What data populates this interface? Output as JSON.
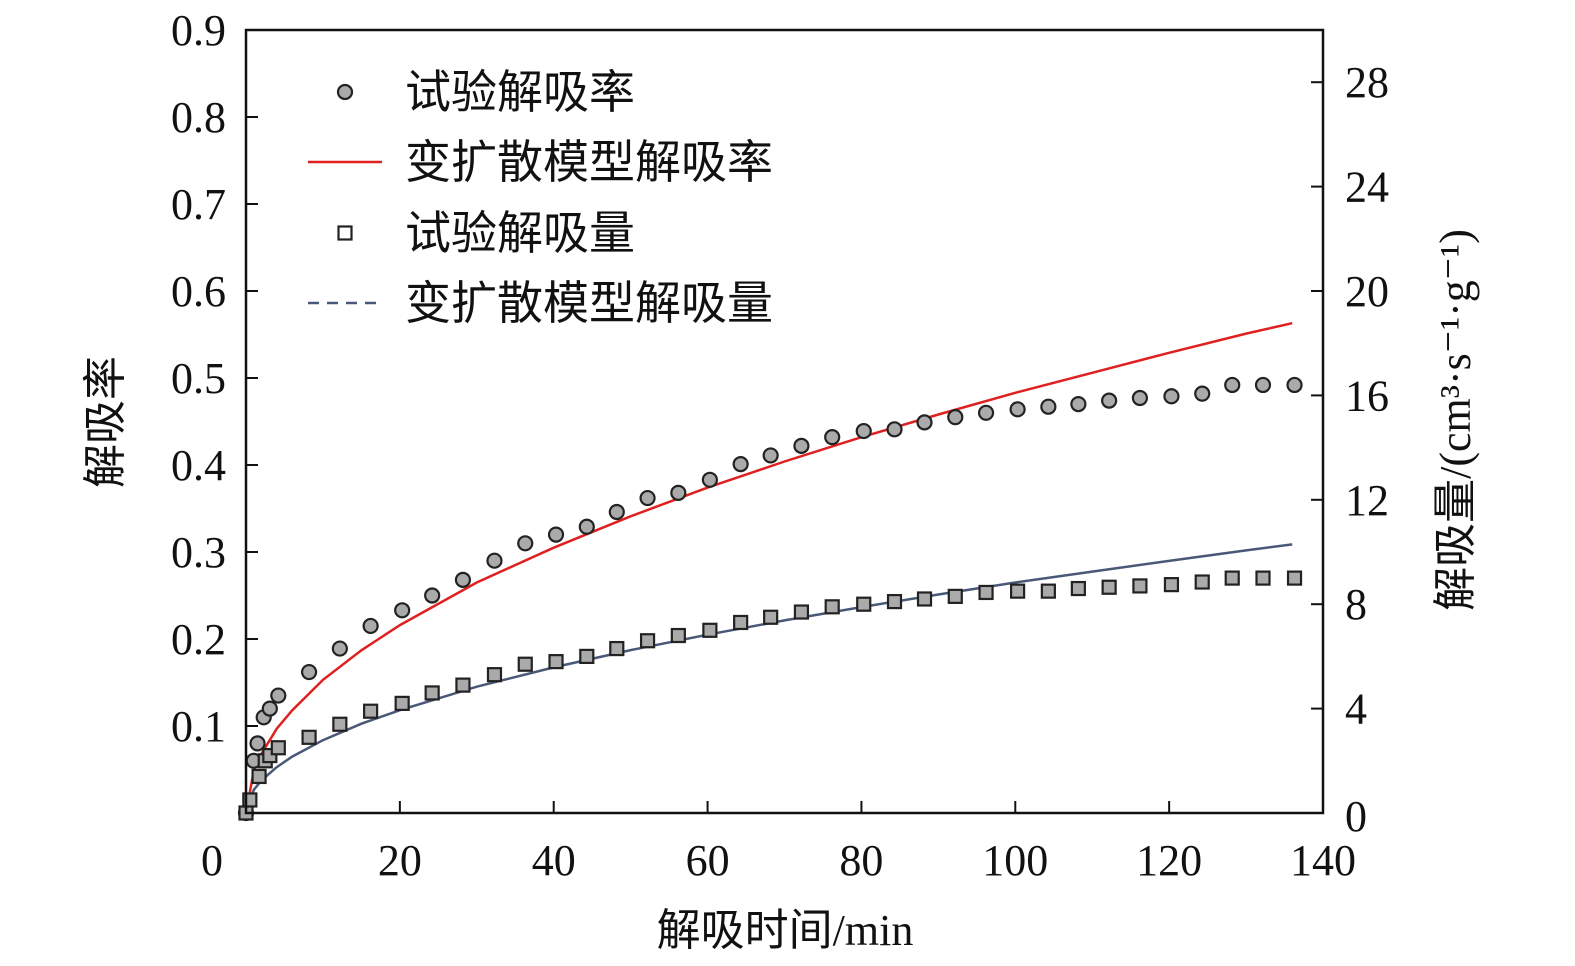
{
  "chart_data": {
    "type": "scatter",
    "xlabel": "解吸时间/min",
    "ylabel_left": "解吸率",
    "ylabel_right": "解吸量/(cm³·s⁻¹·g⁻¹)",
    "xlim": [
      0,
      140
    ],
    "ylim_left": [
      0,
      0.9
    ],
    "ylim_right": [
      0,
      30
    ],
    "x_ticks": [
      "0",
      "20",
      "40",
      "60",
      "80",
      "100",
      "120",
      "140"
    ],
    "x_tick_values": [
      0,
      20,
      40,
      60,
      80,
      100,
      120,
      140
    ],
    "y_left_ticks": [
      "0.1",
      "0.2",
      "0.3",
      "0.4",
      "0.5",
      "0.6",
      "0.7",
      "0.8",
      "0.9"
    ],
    "y_left_tick_values": [
      0.1,
      0.2,
      0.3,
      0.4,
      0.5,
      0.6,
      0.7,
      0.8,
      0.9
    ],
    "y_right_ticks": [
      "0",
      "4",
      "8",
      "12",
      "16",
      "20",
      "24",
      "28"
    ],
    "y_right_tick_values": [
      0,
      4,
      8,
      12,
      16,
      20,
      24,
      28
    ],
    "legend_placement": "top-left",
    "grid": false,
    "series": [
      {
        "name": "试验解吸率",
        "kind": "circle",
        "axis": "left",
        "color": "#aaaaaa",
        "x": [
          0,
          1,
          1.5,
          2.3,
          3.1,
          4.2,
          8.2,
          12.2,
          16.2,
          20.3,
          24.2,
          28.2,
          32.3,
          36.3,
          40.3,
          44.3,
          48.2,
          52.2,
          56.2,
          60.3,
          64.3,
          68.2,
          72.2,
          76.2,
          80.3,
          84.3,
          88.2,
          92.2,
          96.2,
          100.3,
          104.3,
          108.2,
          112.2,
          116.2,
          120.3,
          124.3,
          128.2,
          132.2,
          136.3
        ],
        "y": [
          0,
          0.06,
          0.08,
          0.11,
          0.12,
          0.135,
          0.162,
          0.189,
          0.215,
          0.233,
          0.25,
          0.268,
          0.29,
          0.31,
          0.32,
          0.329,
          0.346,
          0.362,
          0.368,
          0.383,
          0.401,
          0.411,
          0.422,
          0.432,
          0.439,
          0.441,
          0.449,
          0.455,
          0.46,
          0.464,
          0.467,
          0.47,
          0.474,
          0.477,
          0.479,
          0.482,
          0.492,
          0.492,
          0.492
        ]
      },
      {
        "name": "变扩散模型解吸率",
        "kind": "line",
        "axis": "left",
        "color": "#e02020",
        "x": [
          0,
          1,
          2,
          4,
          6,
          10,
          15,
          20,
          30,
          40,
          50,
          60,
          70,
          80,
          90,
          100,
          110,
          120,
          130,
          136
        ],
        "y": [
          0,
          0.048,
          0.068,
          0.097,
          0.118,
          0.153,
          0.187,
          0.216,
          0.265,
          0.305,
          0.341,
          0.374,
          0.404,
          0.432,
          0.458,
          0.483,
          0.506,
          0.529,
          0.551,
          0.563
        ]
      },
      {
        "name": "试验解吸量",
        "kind": "square",
        "axis": "right",
        "color": "#aaaaaa",
        "x": [
          0,
          0.5,
          1.7,
          2.5,
          3.1,
          4.2,
          8.2,
          12.2,
          16.2,
          20.3,
          24.2,
          28.2,
          32.3,
          36.3,
          40.3,
          44.3,
          48.2,
          52.2,
          56.2,
          60.3,
          64.3,
          68.2,
          72.2,
          76.2,
          80.3,
          84.3,
          88.2,
          92.2,
          96.2,
          100.3,
          104.3,
          108.2,
          112.2,
          116.2,
          120.3,
          124.3,
          128.2,
          132.2,
          136.3
        ],
        "y": [
          0,
          0.5,
          1.4,
          2.0,
          2.2,
          2.5,
          2.9,
          3.4,
          3.9,
          4.2,
          4.6,
          4.9,
          5.3,
          5.7,
          5.8,
          6.0,
          6.3,
          6.6,
          6.8,
          7.0,
          7.3,
          7.5,
          7.7,
          7.9,
          8.0,
          8.1,
          8.2,
          8.3,
          8.45,
          8.5,
          8.5,
          8.6,
          8.65,
          8.7,
          8.75,
          8.85,
          9.0,
          9.0,
          9.0
        ]
      },
      {
        "name": "变扩散模型解吸量",
        "kind": "line",
        "axis": "right",
        "color": "#4a5878",
        "legend_dashed": true,
        "x": [
          0,
          1,
          2,
          4,
          6,
          10,
          15,
          20,
          30,
          40,
          50,
          60,
          70,
          80,
          90,
          100,
          110,
          120,
          130,
          136
        ],
        "y": [
          0,
          0.88,
          1.25,
          1.76,
          2.16,
          2.79,
          3.42,
          3.94,
          4.84,
          5.58,
          6.24,
          6.83,
          7.38,
          7.89,
          8.37,
          8.83,
          9.25,
          9.66,
          10.06,
          10.29
        ]
      }
    ]
  }
}
